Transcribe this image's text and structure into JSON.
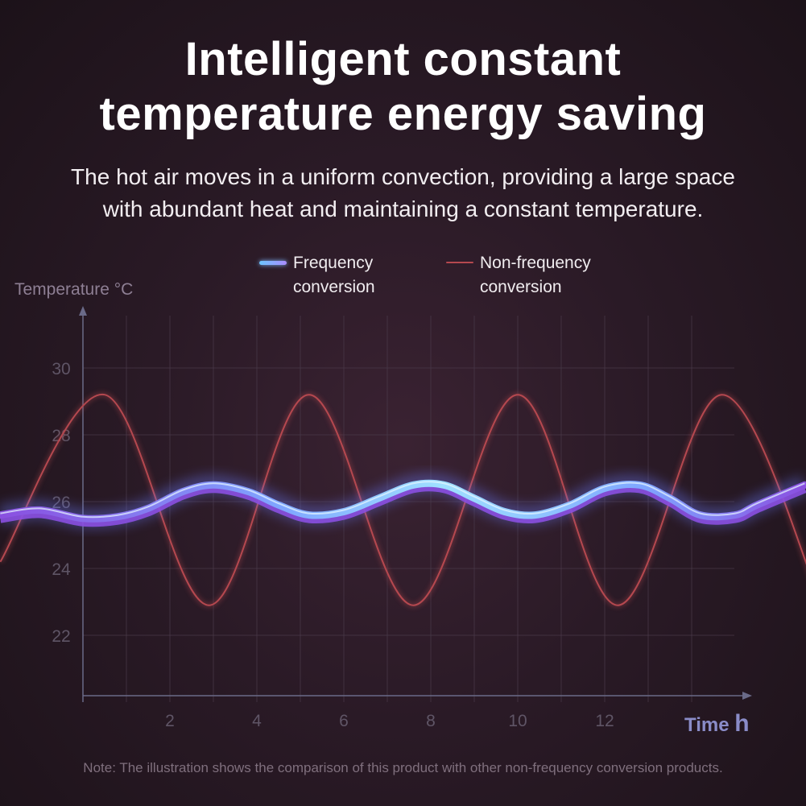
{
  "header": {
    "title_line1": "Intelligent constant",
    "title_line2": "temperature energy saving",
    "subtitle_line1": "The hot air moves in a uniform convection, providing a large space",
    "subtitle_line2": "with abundant heat and maintaining a constant temperature."
  },
  "legend": {
    "frequency_line1": "Frequency",
    "frequency_line2": "conversion",
    "nonfrequency_line1": "Non-frequency",
    "nonfrequency_line2": "conversion"
  },
  "axes": {
    "ylabel": "Temperature °C",
    "xlabel_text": "Time",
    "xlabel_unit": "h"
  },
  "note": "Note: The illustration shows the comparison of this product with other non-frequency conversion products.",
  "colors": {
    "frequency_line": "#7fc4ff",
    "frequency_line_secondary": "#8a4fe0",
    "nonfrequency_line": "#b5484f",
    "grid": "#4a3a4a",
    "axis": "#6a6a88"
  },
  "chart_data": {
    "type": "line",
    "xlabel": "Time h",
    "ylabel": "Temperature °C",
    "xlim": [
      0,
      15.5
    ],
    "ylim": [
      20,
      31
    ],
    "x_ticks": [
      2,
      4,
      6,
      8,
      10,
      12
    ],
    "y_ticks": [
      22,
      24,
      26,
      28,
      30
    ],
    "grid": true,
    "legend_position": "top-center",
    "series": [
      {
        "name": "Frequency conversion",
        "x": [
          -1.9,
          -1.0,
          0.0,
          0.8,
          1.5,
          2.3,
          3.0,
          3.8,
          4.5,
          5.2,
          6.0,
          6.8,
          7.6,
          8.3,
          9.0,
          9.7,
          10.4,
          11.2,
          12.0,
          12.8,
          13.5,
          14.2,
          15.0,
          15.5,
          16.6
        ],
        "y": [
          25.6,
          25.75,
          25.5,
          25.55,
          25.8,
          26.3,
          26.5,
          26.3,
          25.9,
          25.6,
          25.7,
          26.1,
          26.5,
          26.5,
          26.1,
          25.7,
          25.6,
          25.9,
          26.4,
          26.5,
          26.1,
          25.6,
          25.6,
          25.9,
          26.5
        ]
      },
      {
        "name": "Non-frequency conversion",
        "x": [
          -1.9,
          0.5,
          2.9,
          5.2,
          7.6,
          10.0,
          12.3,
          14.7,
          17.0
        ],
        "y": [
          24.2,
          29.2,
          22.9,
          29.2,
          22.9,
          29.2,
          22.9,
          29.2,
          22.9
        ]
      }
    ]
  }
}
